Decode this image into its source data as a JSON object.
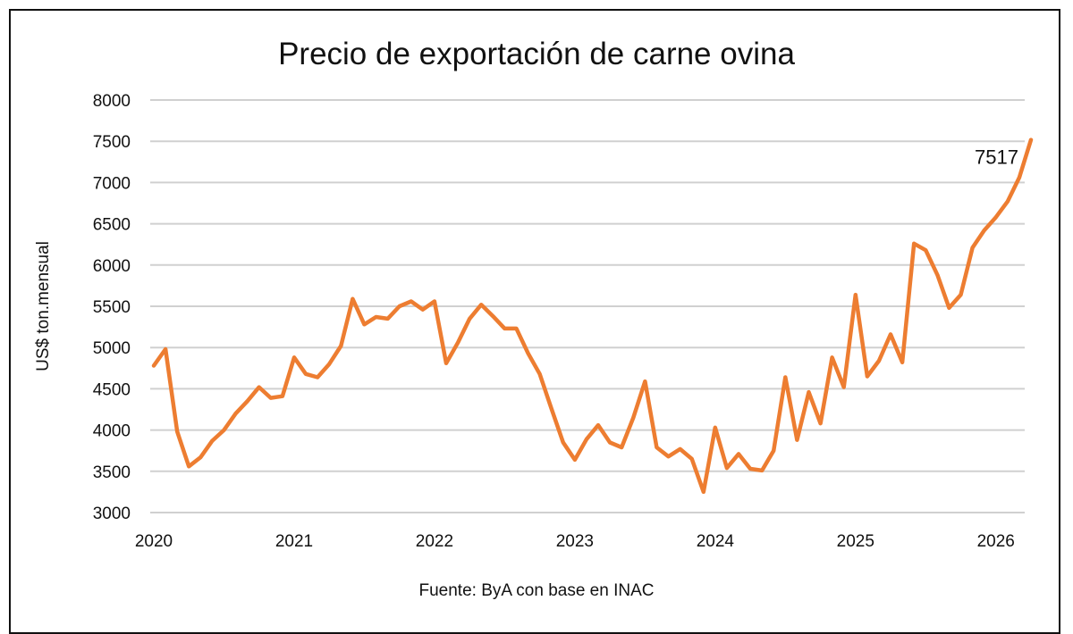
{
  "chart_data": {
    "type": "line",
    "title": "Precio de exportación de carne ovina",
    "xlabel": "",
    "ylabel": "US$ ton.mensual",
    "source": "Fuente: ByA con base en INAC",
    "start_month": "2020-01",
    "frequency": "monthly",
    "x_tick_labels": [
      "2020",
      "2021",
      "2022",
      "2023",
      "2024",
      "2025",
      "2026"
    ],
    "y_tick_labels": [
      "3000",
      "3500",
      "4000",
      "4500",
      "5000",
      "5500",
      "6000",
      "6500",
      "7000",
      "7500",
      "8000"
    ],
    "ylim": [
      3000,
      8000
    ],
    "grid": true,
    "legend": "none",
    "series": [
      {
        "name": "Precio",
        "color": "#ED7D31",
        "values": [
          4780,
          4980,
          3980,
          3560,
          3670,
          3870,
          4000,
          4200,
          4350,
          4520,
          4390,
          4410,
          4880,
          4680,
          4640,
          4800,
          5020,
          5590,
          5280,
          5370,
          5350,
          5500,
          5560,
          5460,
          5560,
          4810,
          5060,
          5350,
          5520,
          5380,
          5230,
          5230,
          4930,
          4680,
          4260,
          3850,
          3640,
          3890,
          4060,
          3850,
          3790,
          4150,
          4590,
          3790,
          3680,
          3770,
          3650,
          3250,
          4030,
          3540,
          3710,
          3530,
          3510,
          3750,
          4640,
          3880,
          4460,
          4080,
          4880,
          4520,
          5640,
          4650,
          4840,
          5160,
          4820,
          6260,
          6180,
          5880,
          5480,
          5640,
          6210,
          6420,
          6580,
          6770,
          7060,
          7517
        ]
      }
    ],
    "annotations": [
      {
        "text": "7517",
        "at": "last point"
      }
    ]
  }
}
